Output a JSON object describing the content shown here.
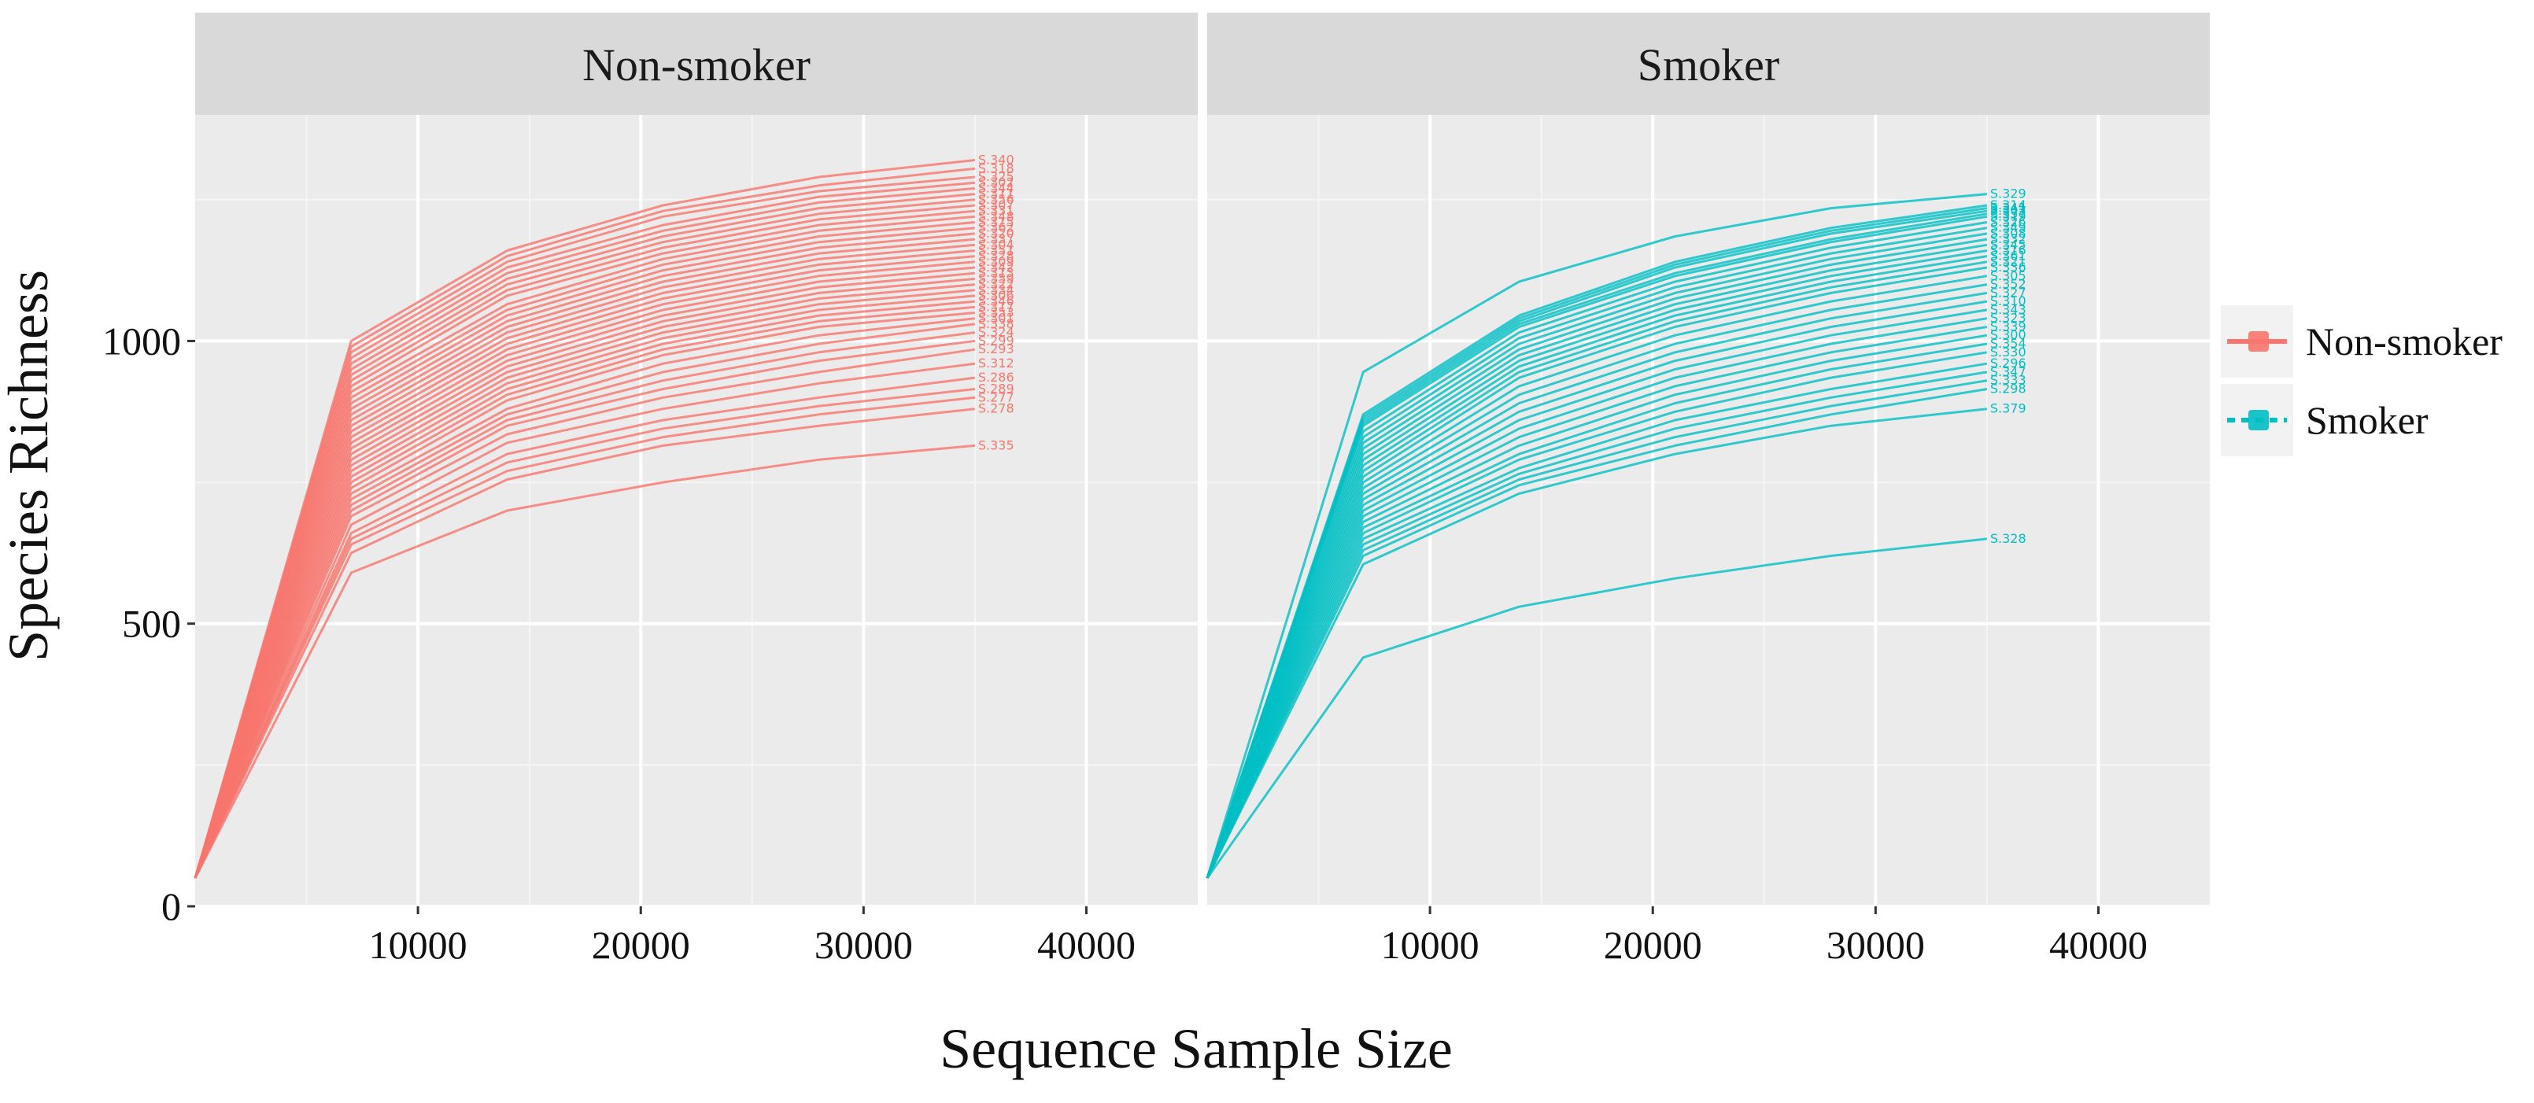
{
  "chart_data": {
    "type": "line",
    "xlabel": "Sequence Sample Size",
    "ylabel": "Species Richness",
    "xlim": [
      0,
      45000
    ],
    "ylim": [
      0,
      1400
    ],
    "x_ticks": [
      "10000",
      "20000",
      "30000",
      "40000"
    ],
    "y_ticks": [
      "0",
      "500",
      "1000"
    ],
    "x_tick_values": [
      10000,
      20000,
      30000,
      40000
    ],
    "y_tick_values": [
      0,
      500,
      1000
    ],
    "grid": true,
    "legend_position": "right",
    "legend": [
      {
        "name": "Non-smoker",
        "color": "#F8766D"
      },
      {
        "name": "Smoker",
        "color": "#00BFC4"
      }
    ],
    "x": [
      0,
      7000,
      14000,
      21000,
      28000,
      35000
    ],
    "panels": [
      {
        "name": "Non-smoker",
        "color": "#F8766D",
        "series": [
          {
            "label": "S.340",
            "values": [
              50,
              1000,
              1160,
              1240,
              1290,
              1320
            ]
          },
          {
            "label": "S.318",
            "values": [
              50,
              990,
              1150,
              1230,
              1275,
              1305
            ]
          },
          {
            "label": "S.325",
            "values": [
              50,
              980,
              1140,
              1220,
              1265,
              1290
            ]
          },
          {
            "label": "S.302",
            "values": [
              50,
              970,
              1130,
              1205,
              1255,
              1280
            ]
          },
          {
            "label": "S.344",
            "values": [
              50,
              960,
              1120,
              1195,
              1245,
              1270
            ]
          },
          {
            "label": "S.311",
            "values": [
              50,
              950,
              1110,
              1185,
              1235,
              1260
            ]
          },
          {
            "label": "S.356",
            "values": [
              50,
              940,
              1100,
              1175,
              1225,
              1250
            ]
          },
          {
            "label": "S.307",
            "values": [
              50,
              930,
              1090,
              1165,
              1215,
              1240
            ]
          },
          {
            "label": "S.331",
            "values": [
              50,
              920,
              1080,
              1155,
              1205,
              1230
            ]
          },
          {
            "label": "S.348",
            "values": [
              50,
              910,
              1065,
              1145,
              1195,
              1220
            ]
          },
          {
            "label": "S.315",
            "values": [
              50,
              900,
              1055,
              1135,
              1185,
              1210
            ]
          },
          {
            "label": "S.362",
            "values": [
              50,
              890,
              1045,
              1125,
              1175,
              1200
            ]
          },
          {
            "label": "S.320",
            "values": [
              50,
              880,
              1035,
              1115,
              1165,
              1190
            ]
          },
          {
            "label": "S.337",
            "values": [
              50,
              870,
              1025,
              1105,
              1155,
              1180
            ]
          },
          {
            "label": "S.304",
            "values": [
              50,
              860,
              1015,
              1095,
              1145,
              1170
            ]
          },
          {
            "label": "S.351",
            "values": [
              50,
              850,
              1005,
              1085,
              1135,
              1160
            ]
          },
          {
            "label": "S.328",
            "values": [
              50,
              840,
              995,
              1075,
              1125,
              1150
            ]
          },
          {
            "label": "S.309",
            "values": [
              50,
              830,
              985,
              1065,
              1115,
              1140
            ]
          },
          {
            "label": "S.342",
            "values": [
              50,
              820,
              975,
              1055,
              1105,
              1130
            ]
          },
          {
            "label": "S.313",
            "values": [
              50,
              810,
              965,
              1045,
              1095,
              1120
            ]
          },
          {
            "label": "S.359",
            "values": [
              50,
              800,
              955,
              1035,
              1085,
              1110
            ]
          },
          {
            "label": "S.322",
            "values": [
              50,
              790,
              945,
              1025,
              1075,
              1100
            ]
          },
          {
            "label": "S.334",
            "values": [
              50,
              780,
              935,
              1015,
              1065,
              1090
            ]
          },
          {
            "label": "S.306",
            "values": [
              50,
              770,
              925,
              1005,
              1055,
              1080
            ]
          },
          {
            "label": "S.346",
            "values": [
              50,
              760,
              915,
              995,
              1045,
              1070
            ]
          },
          {
            "label": "S.317",
            "values": [
              50,
              750,
              905,
              985,
              1035,
              1060
            ]
          },
          {
            "label": "S.353",
            "values": [
              50,
              740,
              895,
              975,
              1025,
              1050
            ]
          },
          {
            "label": "S.301",
            "values": [
              50,
              730,
              880,
              960,
              1010,
              1040
            ]
          },
          {
            "label": "S.338",
            "values": [
              50,
              720,
              870,
              945,
              995,
              1030
            ]
          },
          {
            "label": "S.324",
            "values": [
              50,
              710,
              860,
              930,
              980,
              1015
            ]
          },
          {
            "label": "S.299",
            "values": [
              50,
              700,
              850,
              915,
              965,
              1000
            ]
          },
          {
            "label": "S.293",
            "values": [
              50,
              690,
              835,
              900,
              945,
              985
            ]
          },
          {
            "label": "S.312",
            "values": [
              50,
              675,
              820,
              880,
              925,
              960
            ]
          },
          {
            "label": "S.286",
            "values": [
              50,
              660,
              800,
              860,
              900,
              935
            ]
          },
          {
            "label": "S.289",
            "values": [
              50,
              650,
              785,
              845,
              885,
              915
            ]
          },
          {
            "label": "S.277",
            "values": [
              50,
              640,
              770,
              830,
              870,
              900
            ]
          },
          {
            "label": "S.278",
            "values": [
              50,
              625,
              755,
              815,
              850,
              880
            ]
          },
          {
            "label": "S.335",
            "values": [
              50,
              590,
              700,
              750,
              790,
              815
            ]
          }
        ]
      },
      {
        "name": "Smoker",
        "color": "#00BFC4",
        "series": [
          {
            "label": "S.329",
            "values": [
              50,
              945,
              1105,
              1185,
              1235,
              1260
            ]
          },
          {
            "label": "S.314",
            "values": [
              50,
              870,
              1045,
              1140,
              1200,
              1240
            ]
          },
          {
            "label": "S.341",
            "values": [
              50,
              865,
              1040,
              1135,
              1195,
              1235
            ]
          },
          {
            "label": "S.303",
            "values": [
              50,
              860,
              1035,
              1130,
              1190,
              1230
            ]
          },
          {
            "label": "S.357",
            "values": [
              50,
              855,
              1030,
              1120,
              1180,
              1225
            ]
          },
          {
            "label": "S.319",
            "values": [
              50,
              850,
              1025,
              1115,
              1175,
              1220
            ]
          },
          {
            "label": "S.326",
            "values": [
              50,
              840,
              1015,
              1105,
              1165,
              1210
            ]
          },
          {
            "label": "S.349",
            "values": [
              50,
              830,
              1005,
              1095,
              1155,
              1200
            ]
          },
          {
            "label": "S.308",
            "values": [
              50,
              820,
              995,
              1085,
              1145,
              1190
            ]
          },
          {
            "label": "S.332",
            "values": [
              50,
              810,
              985,
              1075,
              1135,
              1180
            ]
          },
          {
            "label": "S.345",
            "values": [
              50,
              800,
              975,
              1065,
              1125,
              1170
            ]
          },
          {
            "label": "S.316",
            "values": [
              50,
              790,
              965,
              1055,
              1115,
              1160
            ]
          },
          {
            "label": "S.361",
            "values": [
              50,
              780,
              955,
              1045,
              1105,
              1150
            ]
          },
          {
            "label": "S.321",
            "values": [
              50,
              770,
              945,
              1035,
              1095,
              1140
            ]
          },
          {
            "label": "S.336",
            "values": [
              50,
              760,
              935,
              1025,
              1085,
              1130
            ]
          },
          {
            "label": "S.305",
            "values": [
              50,
              750,
              920,
              1010,
              1070,
              1115
            ]
          },
          {
            "label": "S.352",
            "values": [
              50,
              740,
              905,
              995,
              1055,
              1100
            ]
          },
          {
            "label": "S.327",
            "values": [
              50,
              730,
              890,
              980,
              1040,
              1085
            ]
          },
          {
            "label": "S.310",
            "values": [
              50,
              720,
              875,
              965,
              1025,
              1070
            ]
          },
          {
            "label": "S.343",
            "values": [
              50,
              710,
              860,
              950,
              1010,
              1055
            ]
          },
          {
            "label": "S.323",
            "values": [
              50,
              700,
              845,
              935,
              995,
              1040
            ]
          },
          {
            "label": "S.339",
            "values": [
              50,
              690,
              830,
              920,
              980,
              1025
            ]
          },
          {
            "label": "S.300",
            "values": [
              50,
              680,
              815,
              905,
              965,
              1010
            ]
          },
          {
            "label": "S.354",
            "values": [
              50,
              670,
              800,
              890,
              950,
              995
            ]
          },
          {
            "label": "S.330",
            "values": [
              50,
              660,
              790,
              875,
              935,
              980
            ]
          },
          {
            "label": "S.296",
            "values": [
              50,
              650,
              775,
              860,
              915,
              960
            ]
          },
          {
            "label": "S.347",
            "values": [
              50,
              640,
              765,
              845,
              900,
              945
            ]
          },
          {
            "label": "S.333",
            "values": [
              50,
              630,
              755,
              830,
              885,
              930
            ]
          },
          {
            "label": "S.298",
            "values": [
              50,
              620,
              745,
              815,
              870,
              915
            ]
          },
          {
            "label": "S.379",
            "values": [
              50,
              605,
              730,
              800,
              850,
              880
            ]
          },
          {
            "label": "S.328",
            "values": [
              50,
              440,
              530,
              580,
              620,
              650
            ]
          }
        ]
      }
    ]
  }
}
